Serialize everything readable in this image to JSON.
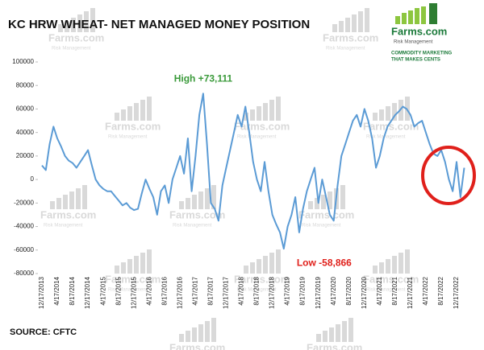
{
  "chart_data": {
    "type": "line",
    "title": "KC HRW WHEAT- NET MANAGED MONEY POSITION",
    "source": "SOURCE: CFTC",
    "logo": {
      "name": "Farms.com",
      "tagline": "Risk Management",
      "slogan1": "COMMODITY MARKETING",
      "slogan2": "THAT MAKES CENTS"
    },
    "annotations": [
      "High +73,111",
      "Low -58,866"
    ],
    "color": "#5b9bd5",
    "ylim": [
      -80000,
      100000
    ],
    "yticks": [
      -80000,
      -60000,
      -40000,
      -20000,
      0,
      20000,
      40000,
      60000,
      80000,
      100000
    ],
    "categories": [
      "12/17/2013",
      null,
      null,
      null,
      "4/17/2014",
      null,
      null,
      null,
      "8/17/2014",
      null,
      null,
      null,
      "12/17/2014",
      null,
      null,
      null,
      "4/17/2015",
      null,
      null,
      null,
      "8/17/2015",
      null,
      null,
      null,
      "12/17/2015",
      null,
      null,
      null,
      "4/17/2016",
      null,
      null,
      null,
      "8/17/2016",
      null,
      null,
      null,
      "12/17/2016",
      null,
      null,
      null,
      "4/17/2017",
      null,
      null,
      null,
      "8/17/2017",
      null,
      null,
      null,
      "12/17/2017",
      null,
      null,
      null,
      "4/17/2018",
      null,
      null,
      null,
      "8/17/2018",
      null,
      null,
      null,
      "12/17/2018",
      null,
      null,
      null,
      "4/17/2019",
      null,
      null,
      null,
      "8/17/2019",
      null,
      null,
      null,
      "12/17/2019",
      null,
      null,
      null,
      "4/17/2020",
      null,
      null,
      null,
      "8/17/2020",
      null,
      null,
      null,
      "12/17/2020",
      null,
      null,
      null,
      "4/17/2021",
      null,
      null,
      null,
      "8/17/2021",
      null,
      null,
      null,
      "12/17/2021",
      null,
      null,
      null,
      "4/17/2022",
      null,
      null,
      null,
      "8/17/2022",
      null,
      null,
      null,
      "12/17/2022",
      null,
      null
    ],
    "values": [
      12000,
      8000,
      30000,
      45000,
      35000,
      28000,
      20000,
      16000,
      14000,
      10000,
      15000,
      20000,
      25000,
      12000,
      0,
      -5000,
      -8000,
      -10000,
      -10000,
      -14000,
      -18000,
      -22000,
      -20000,
      -24000,
      -26000,
      -25000,
      -12000,
      0,
      -8000,
      -15000,
      -30000,
      -10000,
      -5000,
      -20000,
      0,
      10000,
      20000,
      5000,
      35000,
      -10000,
      20000,
      55000,
      73111,
      30000,
      -20000,
      -25000,
      -35000,
      -5000,
      10000,
      25000,
      40000,
      55000,
      45000,
      62000,
      40000,
      15000,
      0,
      -10000,
      15000,
      -10000,
      -30000,
      -38000,
      -45000,
      -58866,
      -40000,
      -30000,
      -15000,
      -45000,
      -25000,
      -10000,
      0,
      10000,
      -20000,
      0,
      -15000,
      -30000,
      -35000,
      -5000,
      20000,
      30000,
      40000,
      50000,
      55000,
      45000,
      60000,
      50000,
      35000,
      10000,
      20000,
      35000,
      45000,
      50000,
      55000,
      58000,
      62000,
      60000,
      55000,
      45000,
      48000,
      50000,
      40000,
      30000,
      22000,
      20000,
      25000,
      15000,
      0,
      -10000,
      15000,
      -15000,
      10000
    ]
  }
}
